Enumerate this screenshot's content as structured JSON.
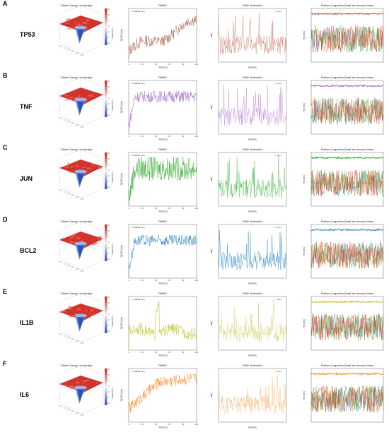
{
  "rows": [
    {
      "letter": "A",
      "gene": "TP53",
      "color": "#a0523d",
      "rmsf_color": "#c97b6b"
    },
    {
      "letter": "B",
      "gene": "TNF",
      "color": "#9b59c6",
      "rmsf_color": "#c18ad9"
    },
    {
      "letter": "C",
      "gene": "JUN",
      "color": "#1fa31f",
      "rmsf_color": "#49b84a"
    },
    {
      "letter": "D",
      "gene": "BCL2",
      "color": "#1f77b4",
      "rmsf_color": "#3a8fc9"
    },
    {
      "letter": "E",
      "gene": "IL1B",
      "color": "#bcbd22",
      "rmsf_color": "#cfd06a"
    },
    {
      "letter": "F",
      "gene": "IL6",
      "color": "#ff7f0e",
      "rmsf_color": "#ffb070"
    }
  ],
  "panel_titles": {
    "fel": "Gibbs Energy Landscape",
    "rmsd": "RMSD",
    "rmsf": "RMS fluctuation",
    "rg": "Radius of gyration (total and around axes)"
  },
  "axis_labels": {
    "rmsd_x": "Time (ns)",
    "rmsd_y": "RMSD (nm)",
    "rmsf_x": "Residue",
    "rmsf_y": "(nm)",
    "rg_y": "Rg (nm)",
    "fel_z": "G (kJ/mol)"
  },
  "legend_text": {
    "rmsd": "RMSD (nm)",
    "rmsf": "(nm)"
  },
  "rg_colors": [
    "#1f77b4",
    "#ff7f0e",
    "#2ca02c",
    "#d62728"
  ],
  "chart_data": [
    {
      "type": "line",
      "panel": "RMSD",
      "gene": "TP53",
      "x_range": [
        0,
        100
      ],
      "y_range": [
        0,
        0.9
      ],
      "trend": "rising",
      "xticks": [
        "0",
        "20",
        "40",
        "60",
        "80",
        "100"
      ]
    },
    {
      "type": "line",
      "panel": "RMSD",
      "gene": "TNF",
      "x_range": [
        0,
        100
      ],
      "y_range": [
        0,
        0.9
      ],
      "trend": "plateau",
      "xticks": [
        "0",
        "20",
        "40",
        "60",
        "80",
        "100"
      ]
    },
    {
      "type": "line",
      "panel": "RMSD",
      "gene": "JUN",
      "x_range": [
        0,
        100
      ],
      "y_range": [
        0,
        0.9
      ],
      "trend": "plateau",
      "xticks": [
        "0",
        "20",
        "40",
        "60",
        "80",
        "100"
      ]
    },
    {
      "type": "line",
      "panel": "RMSD",
      "gene": "BCL2",
      "x_range": [
        0,
        100
      ],
      "y_range": [
        0,
        0.25
      ],
      "trend": "plateau",
      "xticks": [
        "0",
        "20",
        "40",
        "60",
        "80",
        "100"
      ]
    },
    {
      "type": "line",
      "panel": "RMSD",
      "gene": "IL1B",
      "x_range": [
        0,
        100
      ],
      "y_range": [
        0,
        0.35
      ],
      "trend": "spike",
      "xticks": [
        "0",
        "20",
        "40",
        "60",
        "80",
        "100"
      ]
    },
    {
      "type": "line",
      "panel": "RMSD",
      "gene": "IL6",
      "x_range": [
        0,
        100
      ],
      "y_range": [
        0,
        0.35
      ],
      "trend": "rising",
      "xticks": [
        "0",
        "20",
        "40",
        "60",
        "80",
        "100"
      ]
    },
    {
      "type": "line",
      "panel": "RMSF",
      "gene": "TP53",
      "x_range": [
        100,
        300
      ]
    },
    {
      "type": "line",
      "panel": "RMSF",
      "gene": "TNF",
      "x_range": [
        1,
        157
      ]
    },
    {
      "type": "line",
      "panel": "RMSF",
      "gene": "JUN",
      "x_range": [
        1,
        250
      ]
    },
    {
      "type": "line",
      "panel": "RMSF",
      "gene": "BCL2",
      "x_range": [
        1,
        200
      ]
    },
    {
      "type": "line",
      "panel": "RMSF",
      "gene": "IL1B",
      "x_range": [
        1,
        153
      ]
    },
    {
      "type": "line",
      "panel": "RMSF",
      "gene": "IL6",
      "x_range": [
        1,
        185
      ]
    },
    {
      "type": "line",
      "panel": "Rg",
      "series": [
        "total",
        "x",
        "y",
        "z"
      ]
    }
  ]
}
